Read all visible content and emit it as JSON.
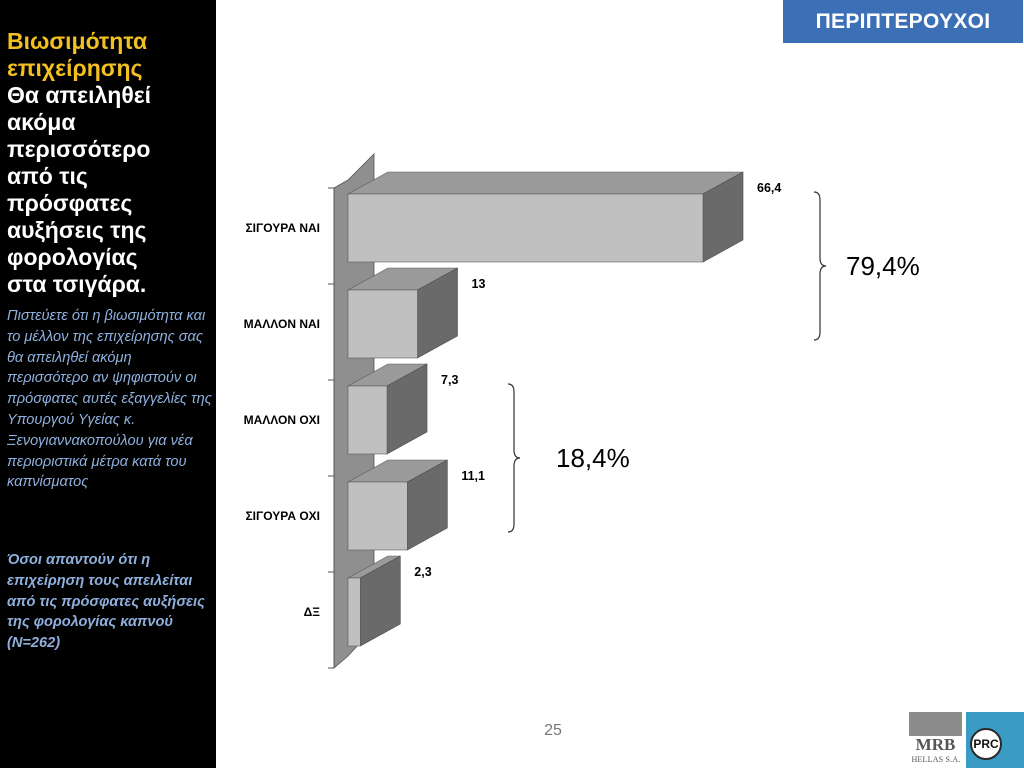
{
  "sidebar": {
    "title_highlight": [
      "Βιωσιμότητα",
      "επιχείρησης"
    ],
    "title_rest": [
      "Θα απειληθεί",
      "ακόμα",
      "περισσότερο",
      "από τις",
      "πρόσφατες",
      "αυξήσεις της",
      "φορολογίας",
      "στα τσιγάρα."
    ],
    "question": "Πιστεύετε ότι η βιωσιμότητα και το μέλλον της επιχείρησης σας θα απειληθεί ακόμη περισσότερο αν ψηφιστούν οι πρόσφατες αυτές εξαγγελίες της Υπουργού Υγείας κ. Ξενογιαννακοπούλου για νέα περιοριστικά μέτρα κατά του καπνίσματος",
    "note": "Όσοι απαντούν ότι η επιχείρηση τους απειλείται από τις πρόσφατες αυξήσεις της φορολογίας καπνού (N=262)"
  },
  "header": {
    "segment": "ΠΕΡΙΠΤΕΡΟΥΧΟΙ"
  },
  "chart_data": {
    "type": "bar",
    "orientation": "horizontal",
    "style": "3d",
    "categories": [
      "ΣΙΓΟΥΡΑ ΝΑΙ",
      "ΜΑΛΛΟΝ ΝΑΙ",
      "ΜΑΛΛΟΝ ΟΧΙ",
      "ΣΙΓΟΥΡΑ ΟΧΙ",
      "ΔΞ"
    ],
    "values": [
      66.4,
      13,
      7.3,
      11.1,
      2.3
    ],
    "value_labels": [
      "66,4",
      "13",
      "7,3",
      "11,1",
      "2,3"
    ],
    "title": "",
    "xlabel": "",
    "ylabel": "",
    "xlim": [
      0,
      70
    ],
    "grid": false,
    "legend": "none",
    "colors": {
      "front": "#c0c0c0",
      "top": "#9a9a9a",
      "side": "#6a6a6a",
      "wall": "#8f8f8f"
    },
    "groups": [
      {
        "label": "79,4%",
        "from": 0,
        "to": 1
      },
      {
        "label": "18,4%",
        "from": 2,
        "to": 3
      }
    ]
  },
  "footer": {
    "page_number": "25",
    "logo_mrb": "MRB",
    "logo_mrb_sub": "HELLAS S.A.",
    "logo_prc": "PRC"
  }
}
